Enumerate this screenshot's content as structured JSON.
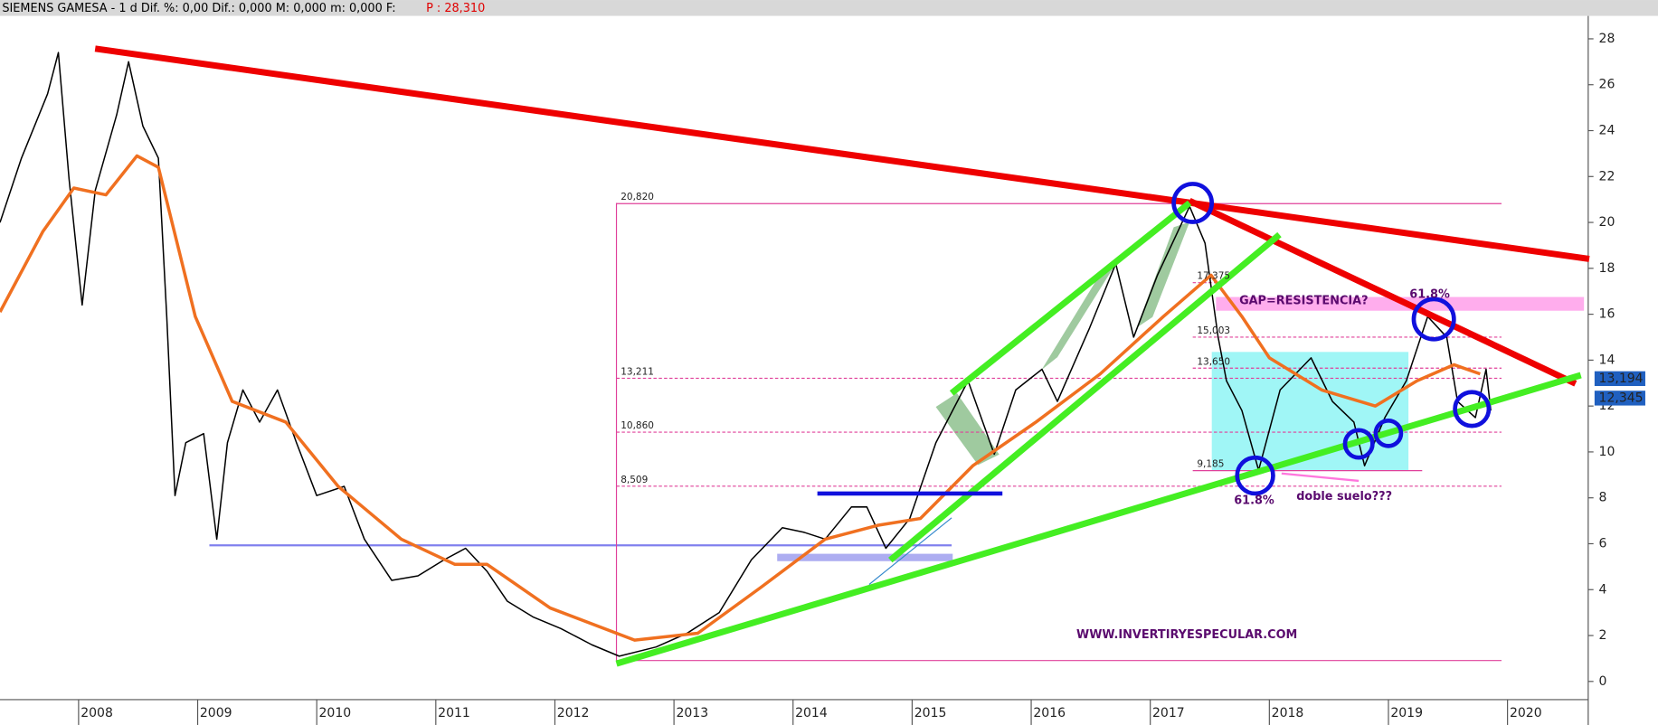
{
  "header": {
    "title": "SIEMENS GAMESA -  1 d Dif. %: 0,00 Dif.: 0,000 M: 0,000 m: 0,000 F:",
    "price": "P : 28,310"
  },
  "chart_data": {
    "type": "line",
    "xlim": [
      2007.34,
      2020.66
    ],
    "ylim": [
      -0.7,
      29.0
    ],
    "xticks": [
      2008,
      2009,
      2010,
      2011,
      2012,
      2013,
      2014,
      2015,
      2016,
      2017,
      2018,
      2019,
      2020
    ],
    "yticks": [
      0,
      2,
      4,
      6,
      8,
      10,
      12,
      14,
      16,
      18,
      20,
      22,
      24,
      26,
      28
    ],
    "series": [
      {
        "color": "#000000",
        "x": [
          2007.34,
          2007.52,
          2007.74,
          2007.83,
          2007.92,
          2008.03,
          2008.14,
          2008.32,
          2008.42,
          2008.54,
          2008.67,
          2008.74,
          2008.81,
          2008.9,
          2009.05,
          2009.16,
          2009.25,
          2009.38,
          2009.52,
          2009.67,
          2009.83,
          2010.0,
          2010.23,
          2010.4,
          2010.63,
          2010.85,
          2011.07,
          2011.25,
          2011.43,
          2011.6,
          2011.82,
          2012.05,
          2012.31,
          2012.54,
          2012.85,
          2013.11,
          2013.38,
          2013.65,
          2013.91,
          2014.09,
          2014.27,
          2014.49,
          2014.62,
          2014.78,
          2014.98,
          2015.2,
          2015.47,
          2015.69,
          2015.87,
          2016.09,
          2016.22,
          2016.49,
          2016.71,
          2016.86,
          2017.06,
          2017.33,
          2017.46,
          2017.57,
          2017.64,
          2017.77,
          2017.91,
          2018.09,
          2018.35,
          2018.53,
          2018.71,
          2018.8,
          2018.97,
          2019.15,
          2019.33,
          2019.49,
          2019.58,
          2019.73,
          2019.82,
          2019.86
        ],
        "values": [
          20.0,
          22.8,
          25.6,
          27.4,
          21.9,
          16.4,
          21.4,
          24.7,
          27.0,
          24.2,
          22.8,
          15.9,
          8.1,
          10.4,
          10.8,
          6.2,
          10.4,
          12.7,
          11.3,
          12.7,
          10.4,
          8.1,
          8.5,
          6.2,
          4.4,
          4.6,
          5.3,
          5.8,
          4.8,
          3.5,
          2.8,
          2.3,
          1.6,
          1.1,
          1.5,
          2.1,
          3.0,
          5.3,
          6.7,
          6.5,
          6.2,
          7.6,
          7.6,
          5.8,
          7.1,
          10.4,
          13.1,
          9.9,
          12.7,
          13.6,
          12.2,
          15.4,
          18.2,
          15.0,
          17.7,
          20.7,
          19.1,
          15.0,
          13.1,
          11.8,
          9.2,
          12.7,
          14.1,
          12.2,
          11.3,
          9.4,
          11.5,
          13.1,
          15.9,
          15.0,
          12.2,
          11.5,
          13.6,
          11.8
        ]
      },
      {
        "color": "#f07020",
        "x": [
          2007.34,
          2007.7,
          2007.96,
          2008.23,
          2008.49,
          2008.67,
          2008.98,
          2009.29,
          2009.74,
          2010.18,
          2010.71,
          2011.16,
          2011.43,
          2011.96,
          2012.67,
          2013.2,
          2013.73,
          2014.27,
          2014.71,
          2015.07,
          2015.51,
          2016.04,
          2016.58,
          2017.11,
          2017.51,
          2017.77,
          2018.0,
          2018.44,
          2018.89,
          2019.24,
          2019.55,
          2019.77
        ],
        "values": [
          16.1,
          19.6,
          21.5,
          21.2,
          22.9,
          22.4,
          15.9,
          12.2,
          11.3,
          8.5,
          6.2,
          5.1,
          5.1,
          3.2,
          1.8,
          2.1,
          4.1,
          6.2,
          6.8,
          7.1,
          9.4,
          11.3,
          13.4,
          15.9,
          17.7,
          15.9,
          14.1,
          12.7,
          12.0,
          13.1,
          13.8,
          13.4
        ]
      }
    ],
    "levels": [
      {
        "value": 20.82,
        "label": "20,820"
      },
      {
        "value": 17.375,
        "label": "17,375"
      },
      {
        "value": 15.003,
        "label": "15,003"
      },
      {
        "value": 13.65,
        "label": "13,650"
      },
      {
        "value": 13.211,
        "label": "13,211"
      },
      {
        "value": 10.86,
        "label": "10,860"
      },
      {
        "value": 9.185,
        "label": "9,185"
      },
      {
        "value": 8.509,
        "label": "8,509"
      }
    ],
    "last_prices": [
      {
        "value": 13.194,
        "label": "13,194"
      },
      {
        "value": 12.345,
        "label": "12,345"
      }
    ],
    "annotations": [
      "GAP=RESISTENCIA?",
      "61.8%",
      "61.8%",
      "doble suelo???",
      "WWW.INVERTIRYESPECULAR.COM"
    ]
  }
}
